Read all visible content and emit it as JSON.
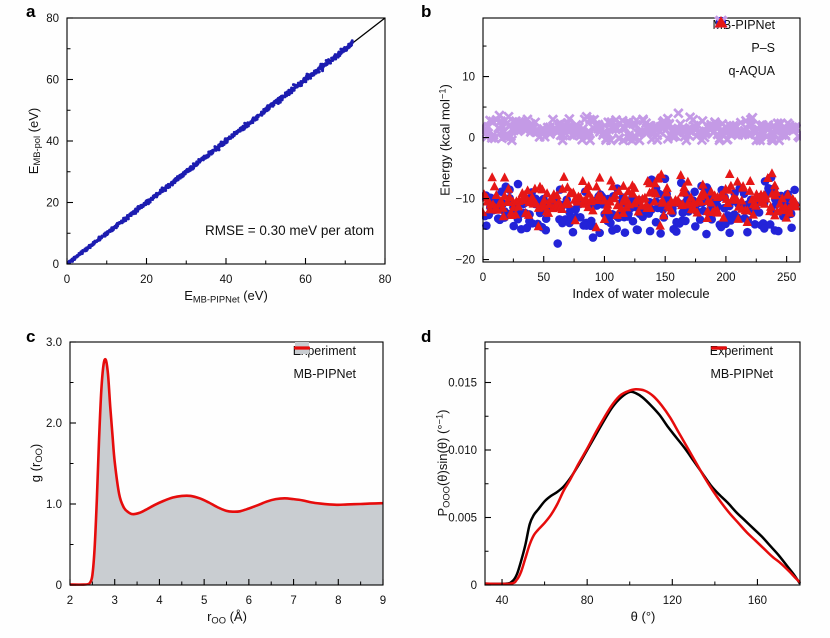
{
  "figure_background": "#fefefe",
  "chart_data": {
    "a": {
      "type": "scatter",
      "letter": "a",
      "xlabel_parts": [
        [
          "E",
          "i"
        ],
        [
          "MB-PIPNet",
          "sb"
        ],
        [
          " (eV)",
          "n"
        ]
      ],
      "ylabel_parts": [
        [
          "E",
          "i"
        ],
        [
          "MB-pol",
          "sb"
        ],
        [
          " (eV)",
          "n"
        ]
      ],
      "xlim": [
        0,
        80
      ],
      "ylim": [
        0,
        80
      ],
      "xticks": {
        "major": [
          [
            0,
            "0"
          ],
          [
            20,
            "20"
          ],
          [
            40,
            "40"
          ],
          [
            60,
            "60"
          ],
          [
            80,
            "80"
          ]
        ],
        "minor": [
          10,
          30,
          50,
          70
        ]
      },
      "yticks": {
        "major": [
          [
            0,
            "0"
          ],
          [
            20,
            "20"
          ],
          [
            40,
            "40"
          ],
          [
            60,
            "60"
          ],
          [
            80,
            "80"
          ]
        ],
        "minor": [
          10,
          30,
          50,
          70
        ]
      },
      "rect": {
        "l": 67,
        "t": 18,
        "r": 385,
        "b": 264
      },
      "annotation": {
        "text": "RMSE = 0.30 meV per atom",
        "x": 56,
        "y": 9.5
      },
      "identity_line": {
        "from": 0,
        "to": 80,
        "color": "#000000",
        "width": 1.3
      },
      "band": {
        "description": "MB-PIPNet vs MB-pol energies lie on the diagonal",
        "n": 1100,
        "seed": 3,
        "xmin": 0.3,
        "xmax": 71.8,
        "jitter_sd_base": 0.24,
        "jitter_sd_slope": 0.0035,
        "color": "#1c1cb0",
        "point_radius": 1.5
      }
    },
    "b": {
      "type": "scatter",
      "letter": "b",
      "xlabel_parts": [
        [
          "Index of water molecule",
          "n"
        ]
      ],
      "ylabel_parts": [
        [
          "Energy (kcal mol",
          "n"
        ],
        [
          "−1",
          "sp"
        ],
        [
          ")",
          "n"
        ]
      ],
      "xlim": [
        0,
        261
      ],
      "ylim": [
        -20.4,
        19.6
      ],
      "xticks": {
        "major": [
          [
            0,
            "0"
          ],
          [
            50,
            "50"
          ],
          [
            100,
            "100"
          ],
          [
            150,
            "150"
          ],
          [
            200,
            "200"
          ],
          [
            250,
            "250"
          ]
        ],
        "minor": [
          25,
          75,
          125,
          175,
          225
        ]
      },
      "yticks": {
        "major": [
          [
            -20,
            "−20"
          ],
          [
            -10,
            "−10"
          ],
          [
            0,
            "0"
          ],
          [
            10,
            "10"
          ]
        ],
        "minor": [
          -15,
          -5,
          5,
          15
        ]
      },
      "rect": {
        "l": 68,
        "t": 18,
        "r": 385,
        "b": 262
      },
      "series": [
        {
          "name": "MB-PIPNet",
          "marker": "circle",
          "color": "#2323d8",
          "n": 256,
          "seed": 11,
          "x_max": 258,
          "y_mean": -11.7,
          "y_sd": 2.05,
          "y_min": -17.6,
          "y_max": -4.2,
          "size": 4.3
        },
        {
          "name": "q-AQUA",
          "marker": "triangle",
          "color": "#e61717",
          "n": 256,
          "seed": 23,
          "x_max": 258,
          "y_mean": -10.2,
          "y_sd": 1.75,
          "y_min": -14.7,
          "y_max": -3.5,
          "size": 5.0
        },
        {
          "name": "P–S",
          "marker": "x",
          "color": "#c49ae6",
          "n": 300,
          "seed": 7,
          "x_max": 260,
          "y_mean": 1.25,
          "y_sd": 1.0,
          "y_min": -0.45,
          "y_max": 5.0,
          "size": 4.3
        }
      ],
      "legend": [
        {
          "label": "MB-PIPNet",
          "marker": "circle",
          "color": "#2323d8"
        },
        {
          "label": "P–S",
          "marker": "x",
          "color": "#c49ae6"
        },
        {
          "label": "q-AQUA",
          "marker": "triangle",
          "color": "#e61717"
        }
      ]
    },
    "c": {
      "type": "area",
      "letter": "c",
      "xlabel_parts": [
        [
          "r",
          "i"
        ],
        [
          "OO",
          "sb"
        ],
        [
          " (Å)",
          "n"
        ]
      ],
      "ylabel_parts": [
        [
          "g",
          "i"
        ],
        [
          " (",
          "n"
        ],
        [
          "r",
          "i"
        ],
        [
          "OO",
          "sb"
        ],
        [
          ")",
          "n"
        ]
      ],
      "xlim": [
        2,
        9
      ],
      "ylim": [
        0,
        3.0
      ],
      "xticks": {
        "major": [
          [
            2,
            "2"
          ],
          [
            3,
            "3"
          ],
          [
            4,
            "4"
          ],
          [
            5,
            "5"
          ],
          [
            6,
            "6"
          ],
          [
            7,
            "7"
          ],
          [
            8,
            "8"
          ],
          [
            9,
            "9"
          ]
        ],
        "minor": [
          2.5,
          3.5,
          4.5,
          5.5,
          6.5,
          7.5,
          8.5
        ]
      },
      "yticks": {
        "major": [
          [
            0,
            "0"
          ],
          [
            1.0,
            "1.0"
          ],
          [
            2.0,
            "2.0"
          ],
          [
            3.0,
            "3.0"
          ]
        ],
        "minor": [
          0.5,
          1.5,
          2.5
        ]
      },
      "rect": {
        "l": 70,
        "t": 23,
        "r": 383,
        "b": 266
      },
      "fill_color": "#c9cdd1",
      "line_color": "#e60c0c",
      "line_width": 2.6,
      "points": [
        [
          2.0,
          0.005
        ],
        [
          2.3,
          0.005
        ],
        [
          2.4,
          0.01
        ],
        [
          2.45,
          0.03
        ],
        [
          2.5,
          0.12
        ],
        [
          2.55,
          0.45
        ],
        [
          2.6,
          1.05
        ],
        [
          2.65,
          1.8
        ],
        [
          2.7,
          2.4
        ],
        [
          2.75,
          2.72
        ],
        [
          2.8,
          2.78
        ],
        [
          2.85,
          2.6
        ],
        [
          2.9,
          2.2
        ],
        [
          2.95,
          1.85
        ],
        [
          3.0,
          1.52
        ],
        [
          3.1,
          1.12
        ],
        [
          3.2,
          0.96
        ],
        [
          3.3,
          0.9
        ],
        [
          3.4,
          0.875
        ],
        [
          3.55,
          0.89
        ],
        [
          3.7,
          0.93
        ],
        [
          3.9,
          0.99
        ],
        [
          4.1,
          1.04
        ],
        [
          4.3,
          1.08
        ],
        [
          4.5,
          1.1
        ],
        [
          4.7,
          1.1
        ],
        [
          4.9,
          1.07
        ],
        [
          5.1,
          1.02
        ],
        [
          5.3,
          0.96
        ],
        [
          5.5,
          0.915
        ],
        [
          5.65,
          0.905
        ],
        [
          5.8,
          0.91
        ],
        [
          6.0,
          0.945
        ],
        [
          6.2,
          0.985
        ],
        [
          6.4,
          1.03
        ],
        [
          6.6,
          1.06
        ],
        [
          6.8,
          1.07
        ],
        [
          7.0,
          1.06
        ],
        [
          7.2,
          1.045
        ],
        [
          7.4,
          1.02
        ],
        [
          7.6,
          1.005
        ],
        [
          7.8,
          0.995
        ],
        [
          8.0,
          0.99
        ],
        [
          8.2,
          0.995
        ],
        [
          8.5,
          1.0
        ],
        [
          8.7,
          1.005
        ],
        [
          9.0,
          1.01
        ]
      ],
      "legend": [
        {
          "label": "Experiment",
          "marker": "box",
          "color": "#c9cdd1"
        },
        {
          "label": "MB-PIPNet",
          "marker": "line",
          "color": "#e60c0c"
        }
      ]
    },
    "d": {
      "type": "line",
      "letter": "d",
      "xlabel_parts": [
        [
          "θ",
          "i"
        ],
        [
          " (°)",
          "n"
        ]
      ],
      "ylabel_parts": [
        [
          "P",
          "i"
        ],
        [
          "OOO",
          "sb"
        ],
        [
          "(",
          "n"
        ],
        [
          "θ",
          "i"
        ],
        [
          ")sin(",
          "n"
        ],
        [
          "θ",
          "i"
        ],
        [
          ") (°",
          "n"
        ],
        [
          "−1",
          "sp"
        ],
        [
          ")",
          "n"
        ]
      ],
      "xlim": [
        32,
        180
      ],
      "ylim": [
        0,
        0.018
      ],
      "xticks": {
        "major": [
          [
            40,
            "40"
          ],
          [
            80,
            "80"
          ],
          [
            120,
            "120"
          ],
          [
            160,
            "160"
          ]
        ],
        "minor": [
          60,
          100,
          140
        ]
      },
      "yticks": {
        "major": [
          [
            0,
            "0"
          ],
          [
            0.005,
            "0.005"
          ],
          [
            0.01,
            "0.010"
          ],
          [
            0.015,
            "0.015"
          ]
        ],
        "minor": [
          0.0025,
          0.0075,
          0.0125,
          0.0175
        ]
      },
      "rect": {
        "l": 70,
        "t": 23,
        "r": 385,
        "b": 266
      },
      "series": [
        {
          "name": "Experiment",
          "color": "#000000",
          "width": 2.5,
          "points": [
            [
              32,
              0.0001
            ],
            [
              42,
              0.0001
            ],
            [
              45,
              0.0003
            ],
            [
              47,
              0.0008
            ],
            [
              49,
              0.0018
            ],
            [
              51,
              0.003
            ],
            [
              53,
              0.0045
            ],
            [
              55,
              0.0052
            ],
            [
              57,
              0.0056
            ],
            [
              60,
              0.0062
            ],
            [
              63,
              0.0066
            ],
            [
              66,
              0.0069
            ],
            [
              69,
              0.0073
            ],
            [
              72,
              0.0079
            ],
            [
              76,
              0.0089
            ],
            [
              80,
              0.01
            ],
            [
              84,
              0.0111
            ],
            [
              88,
              0.0122
            ],
            [
              92,
              0.0132
            ],
            [
              96,
              0.0139
            ],
            [
              100,
              0.0143
            ],
            [
              103,
              0.0142
            ],
            [
              106,
              0.0139
            ],
            [
              110,
              0.0133
            ],
            [
              114,
              0.0126
            ],
            [
              118,
              0.0117
            ],
            [
              122,
              0.0109
            ],
            [
              126,
              0.0101
            ],
            [
              130,
              0.0092
            ],
            [
              134,
              0.0083
            ],
            [
              138,
              0.0074
            ],
            [
              142,
              0.0067
            ],
            [
              146,
              0.0061
            ],
            [
              150,
              0.0054
            ],
            [
              154,
              0.0048
            ],
            [
              158,
              0.0042
            ],
            [
              162,
              0.0036
            ],
            [
              166,
              0.0029
            ],
            [
              170,
              0.0022
            ],
            [
              174,
              0.0014
            ],
            [
              177,
              0.0008
            ],
            [
              180,
              0.0001
            ]
          ]
        },
        {
          "name": "MB-PIPNet",
          "color": "#e60c0c",
          "width": 2.5,
          "points": [
            [
              32,
              0.0001
            ],
            [
              44,
              0.0001
            ],
            [
              47,
              0.0004
            ],
            [
              49,
              0.001
            ],
            [
              51,
              0.002
            ],
            [
              53,
              0.003
            ],
            [
              55,
              0.0037
            ],
            [
              57,
              0.0041
            ],
            [
              60,
              0.0046
            ],
            [
              63,
              0.0052
            ],
            [
              66,
              0.006
            ],
            [
              69,
              0.007
            ],
            [
              72,
              0.0078
            ],
            [
              76,
              0.009
            ],
            [
              80,
              0.0101
            ],
            [
              84,
              0.0113
            ],
            [
              88,
              0.0124
            ],
            [
              92,
              0.0134
            ],
            [
              96,
              0.0141
            ],
            [
              100,
              0.0144
            ],
            [
              103,
              0.0145
            ],
            [
              107,
              0.0144
            ],
            [
              111,
              0.014
            ],
            [
              115,
              0.0133
            ],
            [
              119,
              0.0124
            ],
            [
              123,
              0.0113
            ],
            [
              127,
              0.0102
            ],
            [
              131,
              0.0091
            ],
            [
              135,
              0.008
            ],
            [
              139,
              0.007
            ],
            [
              143,
              0.0061
            ],
            [
              147,
              0.0053
            ],
            [
              151,
              0.0046
            ],
            [
              155,
              0.0039
            ],
            [
              159,
              0.0033
            ],
            [
              163,
              0.0027
            ],
            [
              167,
              0.0021
            ],
            [
              171,
              0.0016
            ],
            [
              175,
              0.001
            ],
            [
              178,
              0.0005
            ],
            [
              180,
              0.0002
            ]
          ]
        }
      ],
      "legend": [
        {
          "label": "Experiment",
          "marker": "line",
          "color": "#000000"
        },
        {
          "label": "MB-PIPNet",
          "marker": "line",
          "color": "#e60c0c"
        }
      ]
    }
  }
}
